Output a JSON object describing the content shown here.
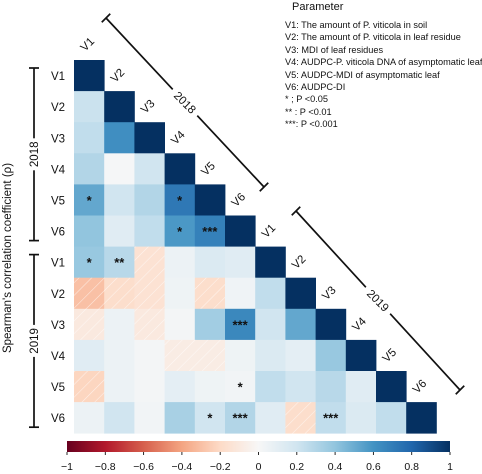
{
  "chart_data": {
    "type": "heatmap",
    "ylabel": "Spearman's correlation coefficient (ρ)",
    "variables": [
      "V1",
      "V2",
      "V3",
      "V4",
      "V5",
      "V6"
    ],
    "years": [
      "2018",
      "2019"
    ],
    "row_labels": [
      "V1",
      "V2",
      "V3",
      "V4",
      "V5",
      "V6",
      "V1",
      "V2",
      "V3",
      "V4",
      "V5",
      "V6"
    ],
    "diagonal_labels": [
      "V1",
      "V2",
      "V3",
      "V4",
      "V5",
      "V6",
      "V1",
      "V2",
      "V3",
      "V4",
      "V5",
      "V6"
    ],
    "colorbar_ticks": [
      "−1",
      "−0.8",
      "−0.6",
      "−0.4",
      "−0.2",
      "0",
      "0.2",
      "0.4",
      "0.6",
      "0.8",
      "1"
    ],
    "colorbar_range": [
      -1,
      1
    ],
    "colors": {
      "negative": "#67001f",
      "neutral": "#f7f7f7",
      "positive": "#053061"
    },
    "legend": {
      "title": "Parameter",
      "items": [
        "V1: The amount of P. viticola in soil",
        "V2: The amount of P. viticola in leaf residue",
        "V3: MDI of leaf residues",
        "V4: AUDPC-P. viticola DNA of asymptomatic leaf",
        "V5: AUDPC-MDI of asymptomatic leaf",
        "V6: AUDPC-DI"
      ],
      "significance": [
        "* ;  P <0.05",
        "** :  P <0.01",
        "***:  P <0.001"
      ]
    },
    "rows": [
      [],
      [
        0.22
      ],
      [
        0.25,
        0.62
      ],
      [
        0.3,
        0.01,
        0.2
      ],
      [
        0.52,
        0.2,
        0.3,
        0.72
      ],
      [
        0.4,
        0.12,
        0.25,
        0.58,
        0.68
      ],
      [
        0.38,
        0.28,
        -0.15,
        0.06,
        0.15,
        0.12
      ],
      [
        -0.3,
        -0.18,
        -0.15,
        0.05,
        -0.18,
        0.04,
        0.25
      ],
      [
        -0.1,
        0.06,
        -0.1,
        0.02,
        0.35,
        0.65,
        0.2,
        0.52
      ],
      [
        0.12,
        0.06,
        0.02,
        -0.08,
        -0.08,
        0.05,
        0.15,
        0.1,
        0.38
      ],
      [
        -0.22,
        0.06,
        0.02,
        0.1,
        0.05,
        0.03,
        0.25,
        0.2,
        0.28,
        0.12
      ],
      [
        0.06,
        0.2,
        0.03,
        0.33,
        0.2,
        0.3,
        0.12,
        -0.18,
        0.25,
        0.15,
        0.25
      ]
    ],
    "significance_marks": [
      {
        "row": 4,
        "col": 0,
        "label": "*"
      },
      {
        "row": 4,
        "col": 3,
        "label": "*"
      },
      {
        "row": 5,
        "col": 3,
        "label": "*"
      },
      {
        "row": 5,
        "col": 4,
        "label": "***"
      },
      {
        "row": 6,
        "col": 0,
        "label": "*"
      },
      {
        "row": 6,
        "col": 1,
        "label": "**"
      },
      {
        "row": 8,
        "col": 5,
        "label": "***"
      },
      {
        "row": 10,
        "col": 5,
        "label": "*"
      },
      {
        "row": 11,
        "col": 4,
        "label": "*"
      },
      {
        "row": 11,
        "col": 5,
        "label": "***"
      },
      {
        "row": 11,
        "col": 8,
        "label": "***"
      }
    ]
  }
}
